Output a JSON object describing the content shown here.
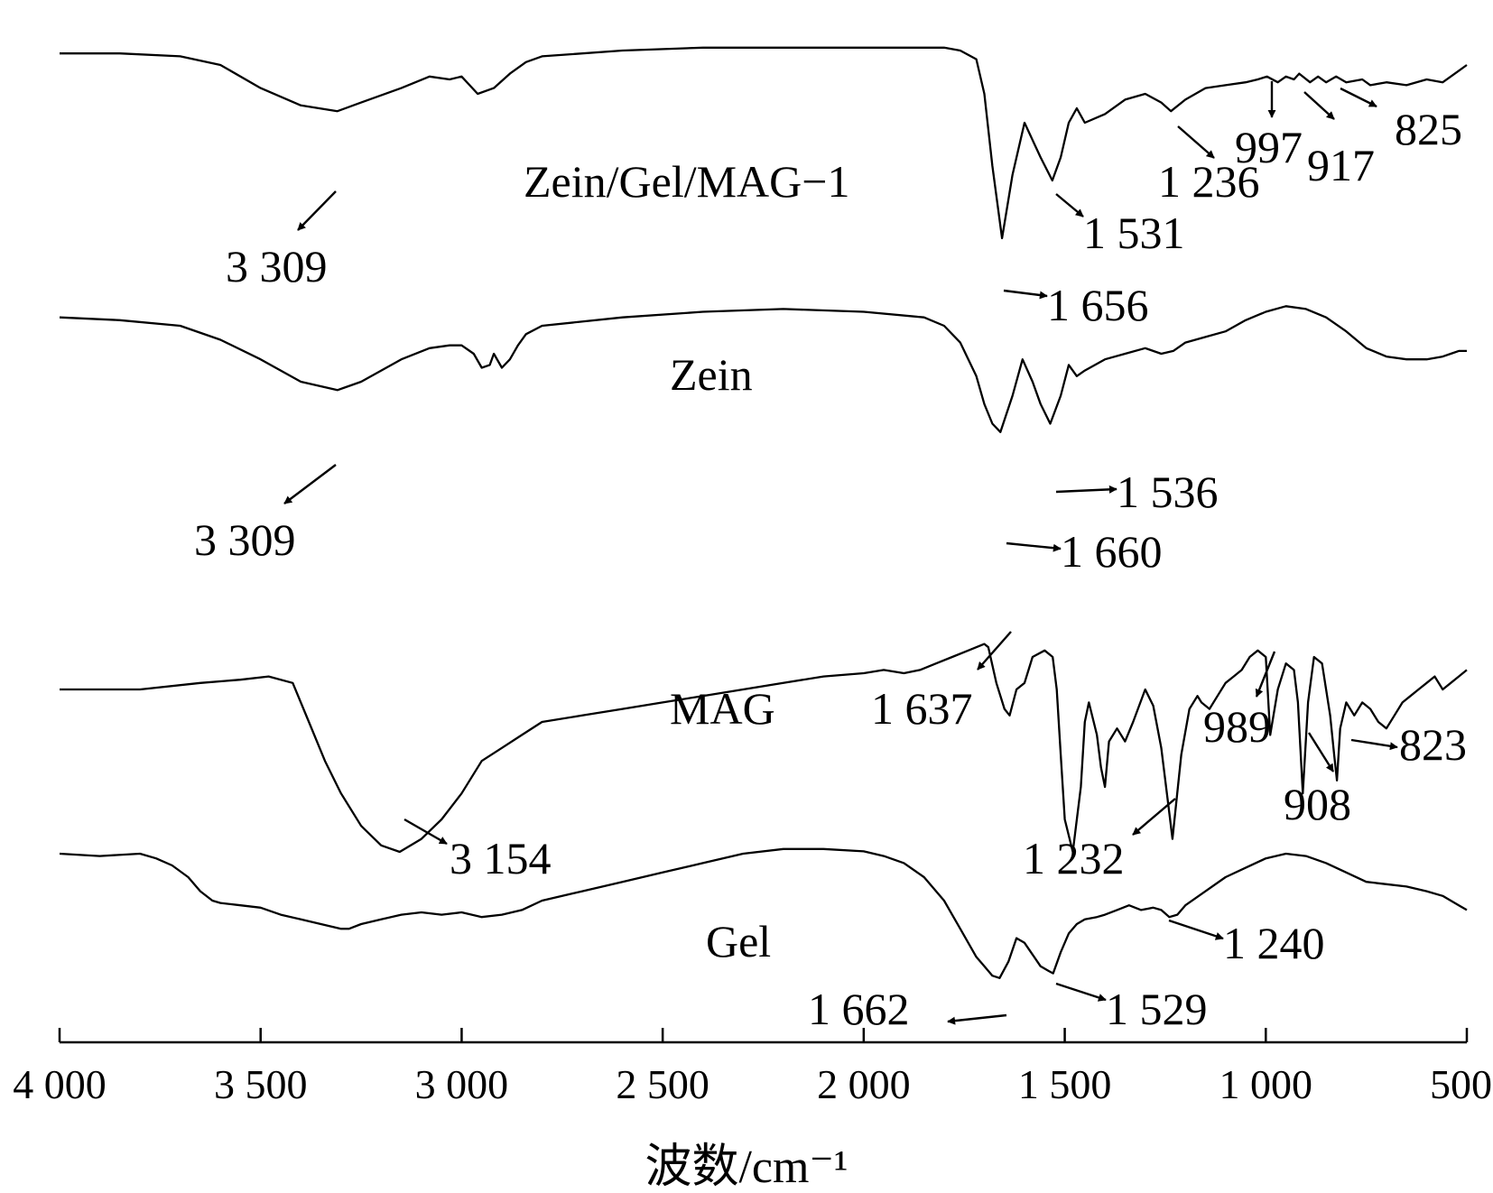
{
  "chart_data": {
    "type": "line",
    "xlabel": "波数/cm⁻¹",
    "ylabel": "",
    "xlim": [
      4000,
      500
    ],
    "x_ticks": [
      4000,
      3500,
      3000,
      2500,
      2000,
      1500,
      1000,
      500
    ],
    "x_tick_labels": [
      "4 000",
      "3 500",
      "3 000",
      "2 500",
      "2 000",
      "1 500",
      "1 000",
      "500"
    ],
    "grid": false,
    "legend": "none",
    "series": [
      {
        "name": "Zein/Gel/MAG−1",
        "x": [
          4000,
          3850,
          3700,
          3600,
          3500,
          3400,
          3309,
          3250,
          3150,
          3080,
          3030,
          3000,
          2960,
          2920,
          2880,
          2840,
          2800,
          2600,
          2400,
          2200,
          2000,
          1800,
          1760,
          1720,
          1700,
          1680,
          1656,
          1630,
          1600,
          1580,
          1560,
          1531,
          1510,
          1490,
          1470,
          1450,
          1400,
          1350,
          1300,
          1260,
          1236,
          1200,
          1150,
          1100,
          1050,
          1020,
          997,
          970,
          950,
          930,
          917,
          890,
          870,
          850,
          825,
          800,
          760,
          740,
          700,
          650,
          600,
          560,
          540,
          520,
          500
        ],
        "y": [
          0.94,
          0.94,
          0.93,
          0.9,
          0.82,
          0.76,
          0.74,
          0.77,
          0.82,
          0.86,
          0.85,
          0.86,
          0.8,
          0.82,
          0.87,
          0.91,
          0.93,
          0.95,
          0.96,
          0.96,
          0.96,
          0.96,
          0.95,
          0.92,
          0.8,
          0.55,
          0.3,
          0.52,
          0.7,
          0.64,
          0.58,
          0.5,
          0.58,
          0.7,
          0.75,
          0.7,
          0.73,
          0.78,
          0.8,
          0.77,
          0.74,
          0.78,
          0.82,
          0.83,
          0.84,
          0.85,
          0.86,
          0.84,
          0.86,
          0.85,
          0.87,
          0.84,
          0.86,
          0.84,
          0.86,
          0.84,
          0.85,
          0.83,
          0.84,
          0.83,
          0.85,
          0.84,
          0.86,
          0.88,
          0.9
        ]
      },
      {
        "name": "Zein",
        "x": [
          4000,
          3850,
          3700,
          3600,
          3500,
          3400,
          3309,
          3250,
          3150,
          3080,
          3030,
          3000,
          2970,
          2950,
          2930,
          2920,
          2900,
          2880,
          2860,
          2840,
          2800,
          2600,
          2400,
          2200,
          2000,
          1850,
          1800,
          1760,
          1720,
          1700,
          1680,
          1660,
          1630,
          1605,
          1580,
          1560,
          1536,
          1510,
          1490,
          1470,
          1450,
          1400,
          1350,
          1300,
          1260,
          1230,
          1200,
          1150,
          1100,
          1050,
          1000,
          950,
          900,
          850,
          800,
          750,
          700,
          650,
          600,
          560,
          540,
          520,
          500
        ],
        "y": [
          0.93,
          0.92,
          0.9,
          0.85,
          0.78,
          0.7,
          0.67,
          0.7,
          0.78,
          0.82,
          0.83,
          0.83,
          0.8,
          0.75,
          0.76,
          0.8,
          0.75,
          0.78,
          0.83,
          0.87,
          0.9,
          0.93,
          0.95,
          0.96,
          0.95,
          0.93,
          0.9,
          0.84,
          0.72,
          0.62,
          0.55,
          0.52,
          0.65,
          0.78,
          0.7,
          0.62,
          0.55,
          0.65,
          0.76,
          0.72,
          0.74,
          0.78,
          0.8,
          0.82,
          0.8,
          0.81,
          0.84,
          0.86,
          0.88,
          0.92,
          0.95,
          0.97,
          0.96,
          0.93,
          0.88,
          0.82,
          0.79,
          0.78,
          0.78,
          0.79,
          0.8,
          0.81,
          0.81
        ]
      },
      {
        "name": "MAG",
        "x": [
          4000,
          3800,
          3650,
          3550,
          3480,
          3420,
          3380,
          3340,
          3300,
          3250,
          3200,
          3154,
          3100,
          3050,
          3000,
          2950,
          2900,
          2850,
          2800,
          2700,
          2600,
          2500,
          2400,
          2300,
          2200,
          2100,
          2000,
          1950,
          1900,
          1860,
          1820,
          1780,
          1740,
          1700,
          1690,
          1670,
          1650,
          1637,
          1620,
          1600,
          1580,
          1550,
          1530,
          1520,
          1510,
          1500,
          1480,
          1460,
          1450,
          1440,
          1420,
          1410,
          1400,
          1390,
          1370,
          1350,
          1330,
          1300,
          1280,
          1260,
          1240,
          1232,
          1210,
          1190,
          1170,
          1160,
          1140,
          1120,
          1100,
          1080,
          1060,
          1040,
          1020,
          1000,
          989,
          970,
          950,
          930,
          920,
          908,
          895,
          880,
          860,
          840,
          830,
          823,
          815,
          800,
          780,
          760,
          740,
          720,
          700,
          680,
          660,
          640,
          620,
          600,
          580,
          560,
          540,
          520,
          500
        ],
        "y": [
          0.6,
          0.6,
          0.62,
          0.63,
          0.64,
          0.62,
          0.5,
          0.38,
          0.28,
          0.18,
          0.12,
          0.1,
          0.14,
          0.2,
          0.28,
          0.38,
          0.42,
          0.46,
          0.5,
          0.52,
          0.54,
          0.56,
          0.58,
          0.6,
          0.62,
          0.64,
          0.65,
          0.66,
          0.65,
          0.66,
          0.68,
          0.7,
          0.72,
          0.74,
          0.73,
          0.62,
          0.54,
          0.52,
          0.6,
          0.62,
          0.7,
          0.72,
          0.7,
          0.6,
          0.4,
          0.2,
          0.1,
          0.3,
          0.5,
          0.56,
          0.46,
          0.36,
          0.3,
          0.44,
          0.48,
          0.44,
          0.5,
          0.6,
          0.55,
          0.42,
          0.22,
          0.14,
          0.4,
          0.54,
          0.58,
          0.56,
          0.54,
          0.58,
          0.62,
          0.64,
          0.66,
          0.7,
          0.72,
          0.7,
          0.46,
          0.6,
          0.68,
          0.66,
          0.56,
          0.28,
          0.56,
          0.7,
          0.68,
          0.52,
          0.4,
          0.32,
          0.48,
          0.56,
          0.52,
          0.56,
          0.54,
          0.5,
          0.48,
          0.52,
          0.56,
          0.58,
          0.6,
          0.62,
          0.64,
          0.6,
          0.62,
          0.64,
          0.66
        ]
      },
      {
        "name": "Gel",
        "x": [
          4000,
          3900,
          3800,
          3760,
          3720,
          3680,
          3650,
          3620,
          3600,
          3550,
          3500,
          3450,
          3400,
          3350,
          3300,
          3280,
          3250,
          3200,
          3150,
          3100,
          3050,
          3000,
          2950,
          2900,
          2850,
          2800,
          2700,
          2600,
          2500,
          2400,
          2300,
          2200,
          2100,
          2000,
          1950,
          1900,
          1850,
          1800,
          1760,
          1720,
          1700,
          1680,
          1662,
          1640,
          1620,
          1600,
          1580,
          1560,
          1540,
          1529,
          1510,
          1490,
          1470,
          1450,
          1420,
          1400,
          1370,
          1340,
          1310,
          1280,
          1260,
          1240,
          1220,
          1200,
          1150,
          1100,
          1050,
          1000,
          950,
          900,
          850,
          800,
          750,
          700,
          650,
          600,
          560,
          540,
          520,
          500
        ],
        "y": [
          0.9,
          0.89,
          0.9,
          0.88,
          0.85,
          0.8,
          0.74,
          0.7,
          0.69,
          0.68,
          0.67,
          0.64,
          0.62,
          0.6,
          0.58,
          0.58,
          0.6,
          0.62,
          0.64,
          0.65,
          0.64,
          0.65,
          0.63,
          0.64,
          0.66,
          0.7,
          0.74,
          0.78,
          0.82,
          0.86,
          0.9,
          0.92,
          0.92,
          0.91,
          0.89,
          0.86,
          0.8,
          0.7,
          0.58,
          0.46,
          0.42,
          0.38,
          0.37,
          0.44,
          0.54,
          0.52,
          0.47,
          0.42,
          0.4,
          0.39,
          0.48,
          0.56,
          0.6,
          0.62,
          0.63,
          0.64,
          0.66,
          0.68,
          0.66,
          0.67,
          0.66,
          0.63,
          0.64,
          0.68,
          0.74,
          0.8,
          0.84,
          0.88,
          0.9,
          0.89,
          0.86,
          0.82,
          0.78,
          0.77,
          0.76,
          0.74,
          0.72,
          0.7,
          0.68,
          0.66
        ]
      }
    ],
    "series_labels": [
      "Zein/Gel/MAG−1",
      "Zein",
      "MAG",
      "Gel"
    ],
    "annotations": {
      "zgm_3309": "3 309",
      "zgm_1656": "1 656",
      "zgm_1531": "1 531",
      "zgm_1236": "1 236",
      "zgm_997": "997",
      "zgm_917": "917",
      "zgm_825": "825",
      "zein_3309": "3 309",
      "zein_1660": "1 660",
      "zein_1536": "1 536",
      "mag_3154": "3 154",
      "mag_1637": "1 637",
      "mag_1232": "1 232",
      "mag_989": "989",
      "mag_908": "908",
      "mag_823": "823",
      "gel_1662": "1 662",
      "gel_1529": "1 529",
      "gel_1240": "1 240"
    }
  }
}
